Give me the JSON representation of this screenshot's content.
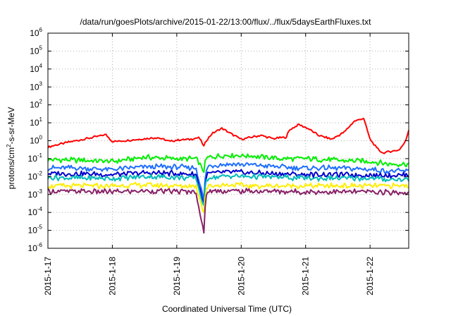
{
  "chart_data": {
    "type": "line",
    "title": "/data/run/goesPlots/archive/2015-01-22/13:00/flux/../flux/5daysEarthFluxes.txt",
    "xlabel": "Coordinated Universal Time (UTC)",
    "ylabel": {
      "pre": "protons/cm",
      "sup": "2",
      "post": "-s-sr-MeV"
    },
    "xlim": [
      0,
      5.6
    ],
    "x_ticks": [
      {
        "x": 0,
        "label": "2015-1-17"
      },
      {
        "x": 1,
        "label": "2015-1-18"
      },
      {
        "x": 2,
        "label": "2015-1-19"
      },
      {
        "x": 3,
        "label": "2015-1-20"
      },
      {
        "x": 4,
        "label": "2015-1-21"
      },
      {
        "x": 5,
        "label": "2015-1-22"
      }
    ],
    "y_scale": "log",
    "ylim": [
      1e-06,
      1000000.0
    ],
    "y_ticks": [
      {
        "exp": "-6"
      },
      {
        "exp": "-5"
      },
      {
        "exp": "-4"
      },
      {
        "exp": "-3"
      },
      {
        "exp": "-2"
      },
      {
        "exp": "-1"
      },
      {
        "exp": "0"
      },
      {
        "exp": "1"
      },
      {
        "exp": "2"
      },
      {
        "exp": "3"
      },
      {
        "exp": "4"
      },
      {
        "exp": "5"
      },
      {
        "exp": "6"
      }
    ],
    "y_tick_base": "10",
    "grid": true,
    "series": [
      {
        "color": "#ff0000",
        "x": [
          0,
          0.3,
          0.6,
          0.9,
          1.0,
          1.2,
          1.5,
          1.7,
          1.9,
          2.0,
          2.2,
          2.35,
          2.42,
          2.47,
          2.55,
          2.7,
          2.8,
          3.0,
          3.3,
          3.5,
          3.7,
          3.75,
          3.9,
          4.05,
          4.2,
          4.4,
          4.6,
          4.75,
          4.9,
          5.0,
          5.1,
          5.2,
          5.3,
          5.45,
          5.55,
          5.6
        ],
        "y": [
          0.45,
          0.8,
          1.3,
          2.2,
          0.9,
          1.0,
          1.3,
          1.5,
          0.9,
          1.1,
          1.2,
          1.5,
          0.5,
          1.2,
          2.5,
          5.0,
          3.0,
          1.2,
          2.0,
          1.3,
          1.6,
          4.0,
          8.0,
          4.5,
          2.0,
          1.2,
          3.0,
          12.0,
          18.0,
          1.2,
          0.4,
          0.2,
          0.25,
          0.3,
          0.9,
          4.0
        ]
      },
      {
        "color": "#00ee00",
        "x": [
          0,
          0.5,
          1.0,
          1.5,
          2.0,
          2.3,
          2.42,
          2.45,
          2.5,
          2.8,
          3.2,
          3.6,
          4.0,
          4.5,
          5.0,
          5.3,
          5.6
        ],
        "y": [
          0.09,
          0.08,
          0.07,
          0.12,
          0.1,
          0.1,
          0.02,
          0.09,
          0.12,
          0.16,
          0.14,
          0.1,
          0.1,
          0.08,
          0.07,
          0.05,
          0.05
        ]
      },
      {
        "color": "#1e6fff",
        "x": [
          0,
          0.5,
          1.0,
          1.5,
          2.0,
          2.3,
          2.42,
          2.45,
          2.5,
          2.8,
          3.2,
          3.6,
          4.0,
          4.5,
          5.0,
          5.3,
          5.6
        ],
        "y": [
          0.03,
          0.03,
          0.025,
          0.035,
          0.035,
          0.03,
          0.0005,
          0.02,
          0.04,
          0.05,
          0.045,
          0.035,
          0.03,
          0.03,
          0.025,
          0.02,
          0.02
        ]
      },
      {
        "color": "#0000cc",
        "x": [
          0,
          0.5,
          1.0,
          1.5,
          2.0,
          2.3,
          2.42,
          2.45,
          2.5,
          2.8,
          3.2,
          3.6,
          4.0,
          4.5,
          5.0,
          5.3,
          5.6
        ],
        "y": [
          0.015,
          0.014,
          0.013,
          0.016,
          0.015,
          0.013,
          0.0003,
          0.01,
          0.015,
          0.018,
          0.016,
          0.014,
          0.013,
          0.013,
          0.012,
          0.012,
          0.012
        ]
      },
      {
        "color": "#00bbbb",
        "x": [
          0,
          0.5,
          1.0,
          1.5,
          2.0,
          2.3,
          2.42,
          2.45,
          2.5,
          2.8,
          3.2,
          3.6,
          4.0,
          4.5,
          5.0,
          5.3,
          5.6
        ],
        "y": [
          0.009,
          0.008,
          0.008,
          0.01,
          0.009,
          0.008,
          0.0002,
          0.006,
          0.009,
          0.011,
          0.01,
          0.009,
          0.008,
          0.008,
          0.008,
          0.007,
          0.007
        ]
      },
      {
        "color": "#ffee00",
        "x": [
          0,
          0.5,
          1.0,
          1.5,
          2.0,
          2.3,
          2.42,
          2.45,
          2.5,
          2.8,
          3.2,
          3.6,
          4.0,
          4.5,
          5.0,
          5.3,
          5.6
        ],
        "y": [
          0.003,
          0.003,
          0.003,
          0.0035,
          0.003,
          0.003,
          0.0001,
          0.002,
          0.003,
          0.0035,
          0.003,
          0.003,
          0.003,
          0.003,
          0.003,
          0.003,
          0.003
        ]
      },
      {
        "color": "#882266",
        "x": [
          0,
          0.5,
          1.0,
          1.5,
          2.0,
          2.3,
          2.42,
          2.45,
          2.5,
          2.8,
          3.2,
          3.6,
          4.0,
          4.5,
          5.0,
          5.3,
          5.6
        ],
        "y": [
          0.0015,
          0.0015,
          0.0014,
          0.0016,
          0.0015,
          0.0014,
          6e-06,
          0.001,
          0.0015,
          0.0016,
          0.0015,
          0.0015,
          0.0014,
          0.0014,
          0.0014,
          0.0013,
          0.0013
        ]
      }
    ]
  }
}
